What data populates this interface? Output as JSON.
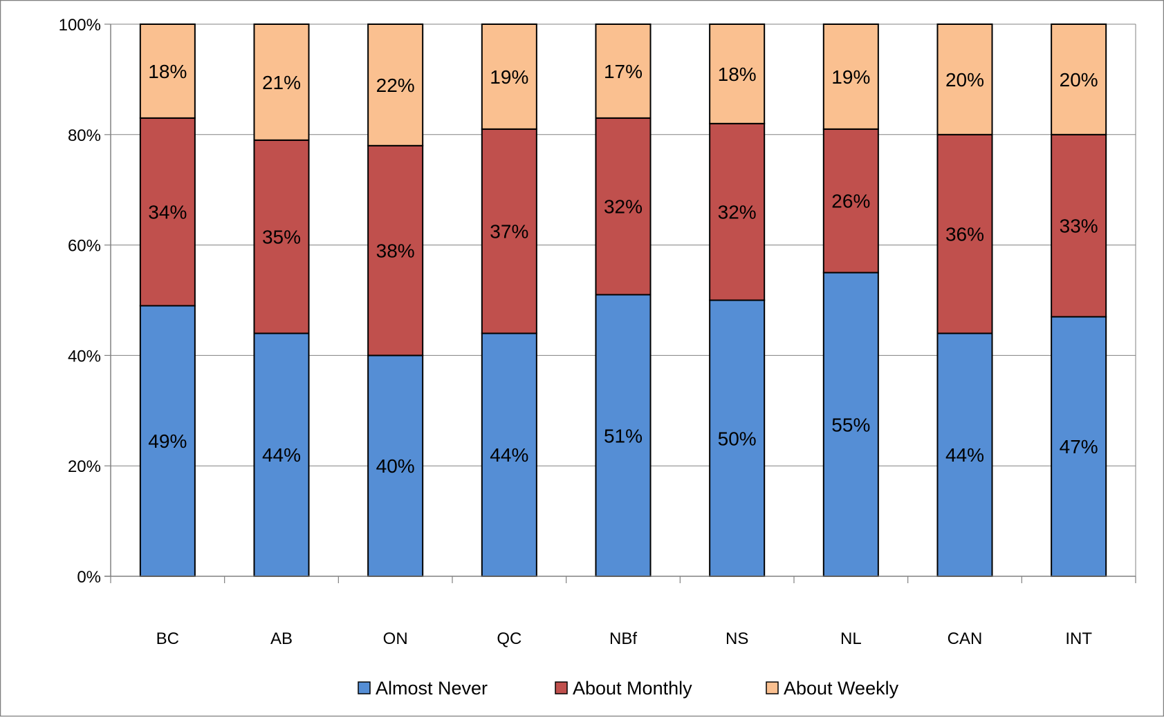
{
  "chart_data": {
    "type": "bar",
    "stacked": true,
    "categories": [
      "BC",
      "AB",
      "ON",
      "QC",
      "NBf",
      "NS",
      "NL",
      "CAN",
      "INT"
    ],
    "series": [
      {
        "name": "Almost Never",
        "color": "#558ED5",
        "values": [
          49,
          44,
          40,
          44,
          51,
          50,
          55,
          44,
          47
        ],
        "labels": [
          "49%",
          "44%",
          "40%",
          "44%",
          "51%",
          "50%",
          "55%",
          "44%",
          "47%"
        ]
      },
      {
        "name": "About Monthly",
        "color": "#C0504D",
        "values": [
          34,
          35,
          38,
          37,
          32,
          32,
          26,
          36,
          33
        ],
        "labels": [
          "34%",
          "35%",
          "38%",
          "37%",
          "32%",
          "32%",
          "26%",
          "36%",
          "33%"
        ]
      },
      {
        "name": "About Weekly",
        "color": "#FAC090",
        "values": [
          18,
          21,
          22,
          19,
          17,
          18,
          19,
          20,
          20
        ],
        "labels": [
          "18%",
          "21%",
          "22%",
          "19%",
          "17%",
          "18%",
          "19%",
          "20%",
          "20%"
        ]
      }
    ],
    "ylim": [
      0,
      100
    ],
    "yticks": [
      0,
      20,
      40,
      60,
      80,
      100
    ],
    "ytick_labels": [
      "0%",
      "20%",
      "40%",
      "60%",
      "80%",
      "100%"
    ],
    "grid": true,
    "legend_position": "bottom",
    "title": "",
    "xlabel": "",
    "ylabel": ""
  }
}
